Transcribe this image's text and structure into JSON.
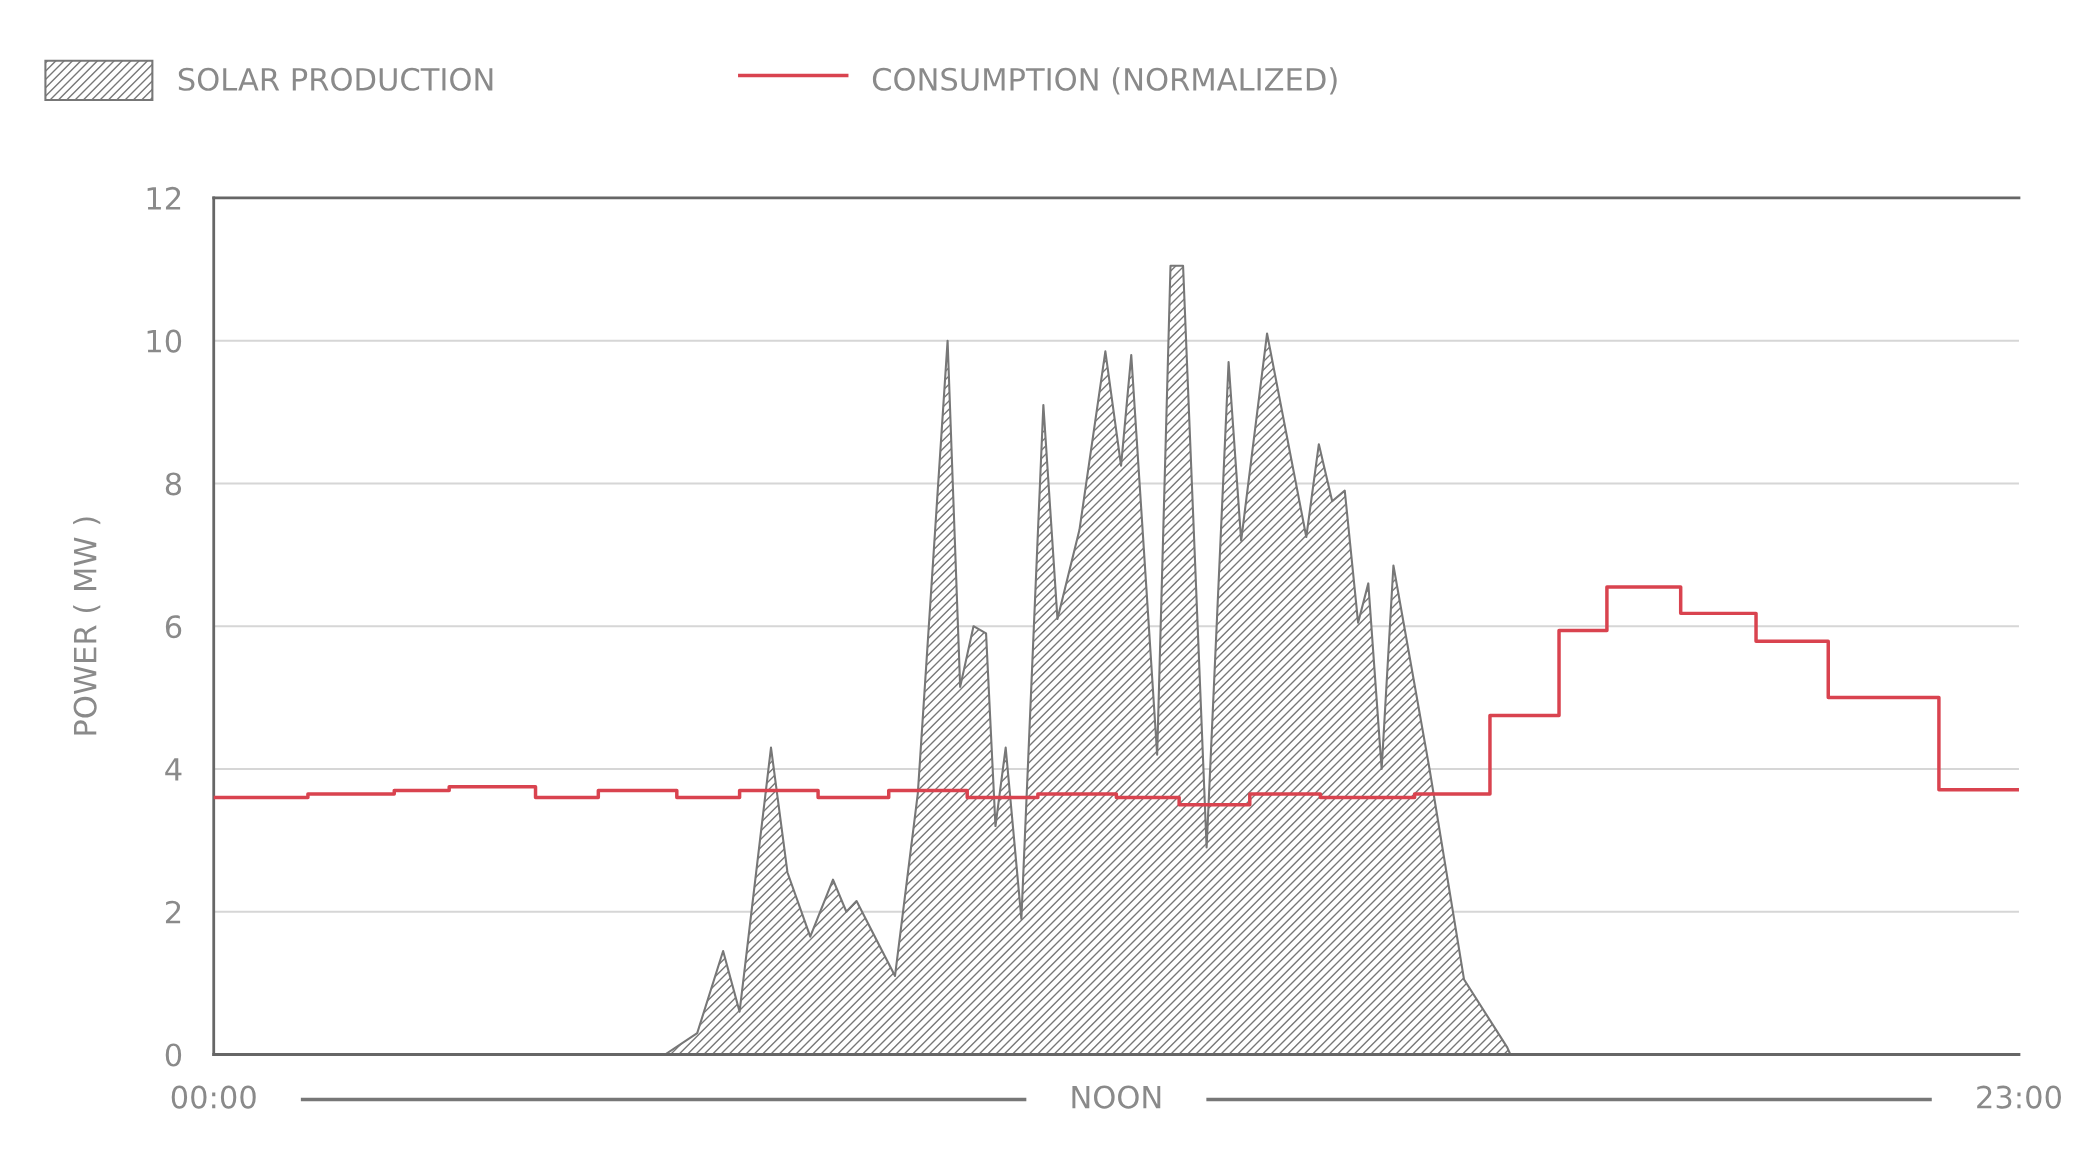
{
  "chart_data": {
    "type": "area",
    "ylabel": "POWER ( MW )",
    "xlim": [
      0,
      23
    ],
    "xticks": [
      {
        "value": 0,
        "label": "00:00"
      },
      {
        "value": 11.5,
        "label": "NOON"
      },
      {
        "value": 23,
        "label": "23:00"
      }
    ],
    "ylim": [
      0,
      12
    ],
    "yticks": [
      0,
      2,
      4,
      6,
      8,
      10,
      12
    ],
    "grid": "y",
    "legend": "top left",
    "series": [
      {
        "name": "SOLAR PRODUCTION",
        "color": "#777777",
        "x": [
          5.75,
          6.16,
          6.49,
          6.7,
          7.1,
          7.31,
          7.6,
          7.89,
          8.06,
          8.19,
          8.68,
          8.97,
          9.35,
          9.51,
          9.68,
          9.84,
          9.96,
          10.09,
          10.29,
          10.57,
          10.75,
          11.03,
          11.36,
          11.56,
          11.69,
          12.02,
          12.19,
          12.35,
          12.65,
          12.93,
          13.09,
          13.42,
          13.92,
          14.08,
          14.25,
          14.41,
          14.58,
          14.71,
          14.88,
          15.03,
          15.49,
          15.93,
          16.48,
          16.52
        ],
        "values": [
          0,
          0.3,
          1.45,
          0.6,
          4.3,
          2.55,
          1.65,
          2.45,
          2.0,
          2.15,
          1.1,
          3.65,
          10.0,
          5.15,
          6.0,
          5.9,
          3.2,
          4.3,
          1.9,
          9.1,
          6.1,
          7.35,
          9.85,
          8.25,
          9.8,
          4.2,
          11.05,
          11.05,
          2.9,
          9.7,
          7.2,
          10.1,
          7.25,
          8.55,
          7.75,
          7.9,
          6.05,
          6.6,
          4.0,
          6.85,
          4.0,
          1.05,
          0.1,
          0
        ]
      },
      {
        "name": "CONSUMPTION (NORMALIZED)",
        "type": "step",
        "color": "#d9434f",
        "x": [
          0,
          1.2,
          2.3,
          3.0,
          4.1,
          4.9,
          5.9,
          6.7,
          7.7,
          8.6,
          9.6,
          10.5,
          11.5,
          12.3,
          13.2,
          14.1,
          15.3,
          16.26,
          17.14,
          17.75,
          18.69,
          19.65,
          20.57,
          21.98,
          23
        ],
        "values": [
          3.6,
          3.65,
          3.7,
          3.75,
          3.6,
          3.7,
          3.6,
          3.7,
          3.6,
          3.7,
          3.6,
          3.65,
          3.6,
          3.5,
          3.65,
          3.6,
          3.65,
          4.75,
          5.94,
          6.55,
          6.18,
          5.79,
          5.0,
          3.71,
          3.71
        ]
      }
    ]
  }
}
